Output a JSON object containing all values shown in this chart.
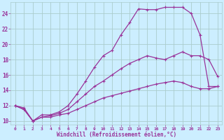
{
  "xlabel": "Windchill (Refroidissement éolien,°C)",
  "background_color": "#cceeff",
  "grid_color": "#aacccc",
  "line_color": "#993399",
  "xlim": [
    -0.5,
    23.5
  ],
  "ylim": [
    9.5,
    25.5
  ],
  "xticks": [
    0,
    1,
    2,
    3,
    4,
    5,
    6,
    7,
    8,
    9,
    10,
    11,
    12,
    13,
    14,
    15,
    16,
    17,
    18,
    19,
    20,
    21,
    22,
    23
  ],
  "yticks": [
    10,
    12,
    14,
    16,
    18,
    20,
    22,
    24
  ],
  "curve1_x": [
    0,
    1,
    2,
    3,
    4,
    5,
    6,
    7,
    8,
    9,
    10,
    11,
    12,
    13,
    14,
    15,
    16,
    17,
    18,
    19,
    20,
    21,
    22,
    23
  ],
  "curve1_y": [
    12,
    11.7,
    10,
    10.8,
    10.8,
    11.2,
    12.0,
    13.5,
    15.2,
    17.0,
    18.5,
    19.2,
    21.2,
    22.8,
    24.6,
    24.5,
    24.5,
    24.8,
    24.8,
    24.8,
    24.0,
    21.2,
    14.5,
    14.5
  ],
  "curve2_x": [
    0,
    1,
    2,
    3,
    4,
    5,
    6,
    7,
    8,
    9,
    10,
    11,
    12,
    13,
    14,
    15,
    16,
    17,
    18,
    19,
    20,
    21,
    22,
    23
  ],
  "curve2_y": [
    12,
    11.5,
    10,
    10.5,
    10.7,
    11.0,
    11.5,
    12.5,
    13.5,
    14.5,
    15.2,
    16.0,
    16.8,
    17.5,
    18.0,
    18.5,
    18.2,
    18.0,
    18.5,
    19.0,
    18.5,
    18.5,
    18.0,
    15.8
  ],
  "curve3_x": [
    0,
    1,
    2,
    3,
    4,
    5,
    6,
    7,
    8,
    9,
    10,
    11,
    12,
    13,
    14,
    15,
    16,
    17,
    18,
    19,
    20,
    21,
    22,
    23
  ],
  "curve3_y": [
    12,
    11.5,
    10,
    10.5,
    10.5,
    10.8,
    11.0,
    11.5,
    12.0,
    12.5,
    13.0,
    13.3,
    13.6,
    13.9,
    14.2,
    14.5,
    14.8,
    15.0,
    15.2,
    15.0,
    14.5,
    14.2,
    14.2,
    14.5
  ]
}
